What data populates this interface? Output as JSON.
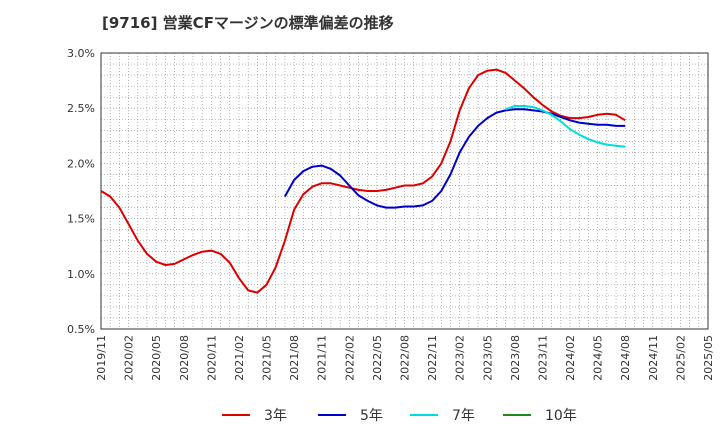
{
  "chart_data": {
    "type": "line",
    "title": "[9716]  営業CFマージンの標準偏差の推移",
    "xlabel": "",
    "ylabel": "",
    "ylim": [
      0.5,
      3.0
    ],
    "yticks": [
      "0.5%",
      "1.0%",
      "1.5%",
      "2.0%",
      "2.5%",
      "3.0%"
    ],
    "ytick_values": [
      0.5,
      1.0,
      1.5,
      2.0,
      2.5,
      3.0
    ],
    "x_start": "2019/11",
    "x_end": "2025/05",
    "xticks": [
      "2019/11",
      "2020/02",
      "2020/05",
      "2020/08",
      "2020/11",
      "2021/02",
      "2021/05",
      "2021/08",
      "2021/11",
      "2022/02",
      "2022/05",
      "2022/08",
      "2022/11",
      "2023/02",
      "2023/05",
      "2023/08",
      "2023/11",
      "2024/02",
      "2024/05",
      "2024/08",
      "2024/11",
      "2025/02",
      "2025/05"
    ],
    "grid": true,
    "legend_position": "bottom",
    "series": [
      {
        "name": "3年",
        "color": "#dd0000",
        "points": [
          [
            "2019/11",
            1.75
          ],
          [
            "2019/12",
            1.7
          ],
          [
            "2020/01",
            1.6
          ],
          [
            "2020/02",
            1.45
          ],
          [
            "2020/03",
            1.3
          ],
          [
            "2020/04",
            1.18
          ],
          [
            "2020/05",
            1.11
          ],
          [
            "2020/06",
            1.08
          ],
          [
            "2020/07",
            1.09
          ],
          [
            "2020/08",
            1.13
          ],
          [
            "2020/09",
            1.17
          ],
          [
            "2020/10",
            1.2
          ],
          [
            "2020/11",
            1.21
          ],
          [
            "2020/12",
            1.18
          ],
          [
            "2021/01",
            1.1
          ],
          [
            "2021/02",
            0.96
          ],
          [
            "2021/03",
            0.85
          ],
          [
            "2021/04",
            0.83
          ],
          [
            "2021/05",
            0.9
          ],
          [
            "2021/06",
            1.06
          ],
          [
            "2021/07",
            1.3
          ],
          [
            "2021/08",
            1.58
          ],
          [
            "2021/09",
            1.72
          ],
          [
            "2021/10",
            1.79
          ],
          [
            "2021/11",
            1.82
          ],
          [
            "2021/12",
            1.82
          ],
          [
            "2022/01",
            1.8
          ],
          [
            "2022/02",
            1.78
          ],
          [
            "2022/03",
            1.76
          ],
          [
            "2022/04",
            1.75
          ],
          [
            "2022/05",
            1.75
          ],
          [
            "2022/06",
            1.76
          ],
          [
            "2022/07",
            1.78
          ],
          [
            "2022/08",
            1.8
          ],
          [
            "2022/09",
            1.8
          ],
          [
            "2022/10",
            1.82
          ],
          [
            "2022/11",
            1.88
          ],
          [
            "2022/12",
            2.0
          ],
          [
            "2023/01",
            2.2
          ],
          [
            "2023/02",
            2.48
          ],
          [
            "2023/03",
            2.68
          ],
          [
            "2023/04",
            2.8
          ],
          [
            "2023/05",
            2.84
          ],
          [
            "2023/06",
            2.85
          ],
          [
            "2023/07",
            2.82
          ],
          [
            "2023/08",
            2.75
          ],
          [
            "2023/09",
            2.68
          ],
          [
            "2023/10",
            2.6
          ],
          [
            "2023/11",
            2.53
          ],
          [
            "2023/12",
            2.47
          ],
          [
            "2024/01",
            2.43
          ],
          [
            "2024/02",
            2.41
          ],
          [
            "2024/03",
            2.41
          ],
          [
            "2024/04",
            2.42
          ],
          [
            "2024/05",
            2.44
          ],
          [
            "2024/06",
            2.45
          ],
          [
            "2024/07",
            2.44
          ],
          [
            "2024/08",
            2.39
          ]
        ]
      },
      {
        "name": "5年",
        "color": "#0000cc",
        "points": [
          [
            "2021/07",
            1.7
          ],
          [
            "2021/08",
            1.85
          ],
          [
            "2021/09",
            1.93
          ],
          [
            "2021/10",
            1.97
          ],
          [
            "2021/11",
            1.98
          ],
          [
            "2021/12",
            1.95
          ],
          [
            "2022/01",
            1.89
          ],
          [
            "2022/02",
            1.8
          ],
          [
            "2022/03",
            1.71
          ],
          [
            "2022/04",
            1.66
          ],
          [
            "2022/05",
            1.62
          ],
          [
            "2022/06",
            1.6
          ],
          [
            "2022/07",
            1.6
          ],
          [
            "2022/08",
            1.61
          ],
          [
            "2022/09",
            1.61
          ],
          [
            "2022/10",
            1.62
          ],
          [
            "2022/11",
            1.66
          ],
          [
            "2022/12",
            1.75
          ],
          [
            "2023/01",
            1.9
          ],
          [
            "2023/02",
            2.1
          ],
          [
            "2023/03",
            2.24
          ],
          [
            "2023/04",
            2.34
          ],
          [
            "2023/05",
            2.41
          ],
          [
            "2023/06",
            2.46
          ],
          [
            "2023/07",
            2.48
          ],
          [
            "2023/08",
            2.49
          ],
          [
            "2023/09",
            2.49
          ],
          [
            "2023/10",
            2.48
          ],
          [
            "2023/11",
            2.47
          ],
          [
            "2023/12",
            2.45
          ],
          [
            "2024/01",
            2.42
          ],
          [
            "2024/02",
            2.39
          ],
          [
            "2024/03",
            2.37
          ],
          [
            "2024/04",
            2.36
          ],
          [
            "2024/05",
            2.35
          ],
          [
            "2024/06",
            2.35
          ],
          [
            "2024/07",
            2.34
          ],
          [
            "2024/08",
            2.34
          ]
        ]
      },
      {
        "name": "7年",
        "color": "#00dddd",
        "points": [
          [
            "2023/07",
            2.49
          ],
          [
            "2023/08",
            2.52
          ],
          [
            "2023/09",
            2.52
          ],
          [
            "2023/10",
            2.51
          ],
          [
            "2023/11",
            2.48
          ],
          [
            "2023/12",
            2.44
          ],
          [
            "2024/01",
            2.38
          ],
          [
            "2024/02",
            2.31
          ],
          [
            "2024/03",
            2.26
          ],
          [
            "2024/04",
            2.22
          ],
          [
            "2024/05",
            2.19
          ],
          [
            "2024/06",
            2.17
          ],
          [
            "2024/07",
            2.16
          ],
          [
            "2024/08",
            2.15
          ]
        ]
      },
      {
        "name": "10年",
        "color": "#228822",
        "points": []
      }
    ]
  }
}
